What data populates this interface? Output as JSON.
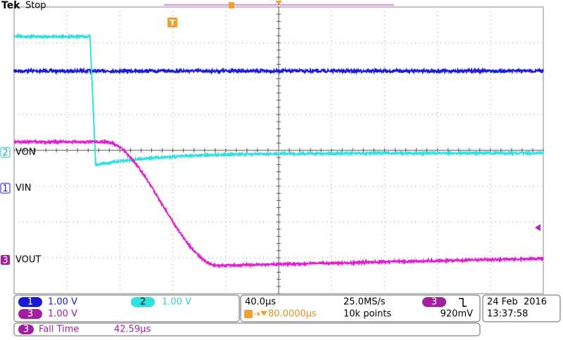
{
  "header": {
    "brand": "Tek",
    "status": "Stop",
    "trigger_marker": "T"
  },
  "channels": [
    {
      "number": "1",
      "label": "VIN",
      "scale": "1.00 V"
    },
    {
      "number": "2",
      "label": "VON",
      "scale": "1.00 V"
    },
    {
      "number": "3",
      "label": "VOUT",
      "scale": "1.00 V"
    }
  ],
  "timebase": {
    "scale": "40.0µs",
    "position": "80.0000µs",
    "sample_rate": "25.0MS/s",
    "record_length": "10k points"
  },
  "trigger": {
    "source": "3",
    "level": "920mV"
  },
  "datetime": {
    "date": "24 Feb  2016",
    "time": "13:37:58"
  },
  "measurement": {
    "channel": "3",
    "name": "Fall Time",
    "value": "42.59µs"
  }
}
